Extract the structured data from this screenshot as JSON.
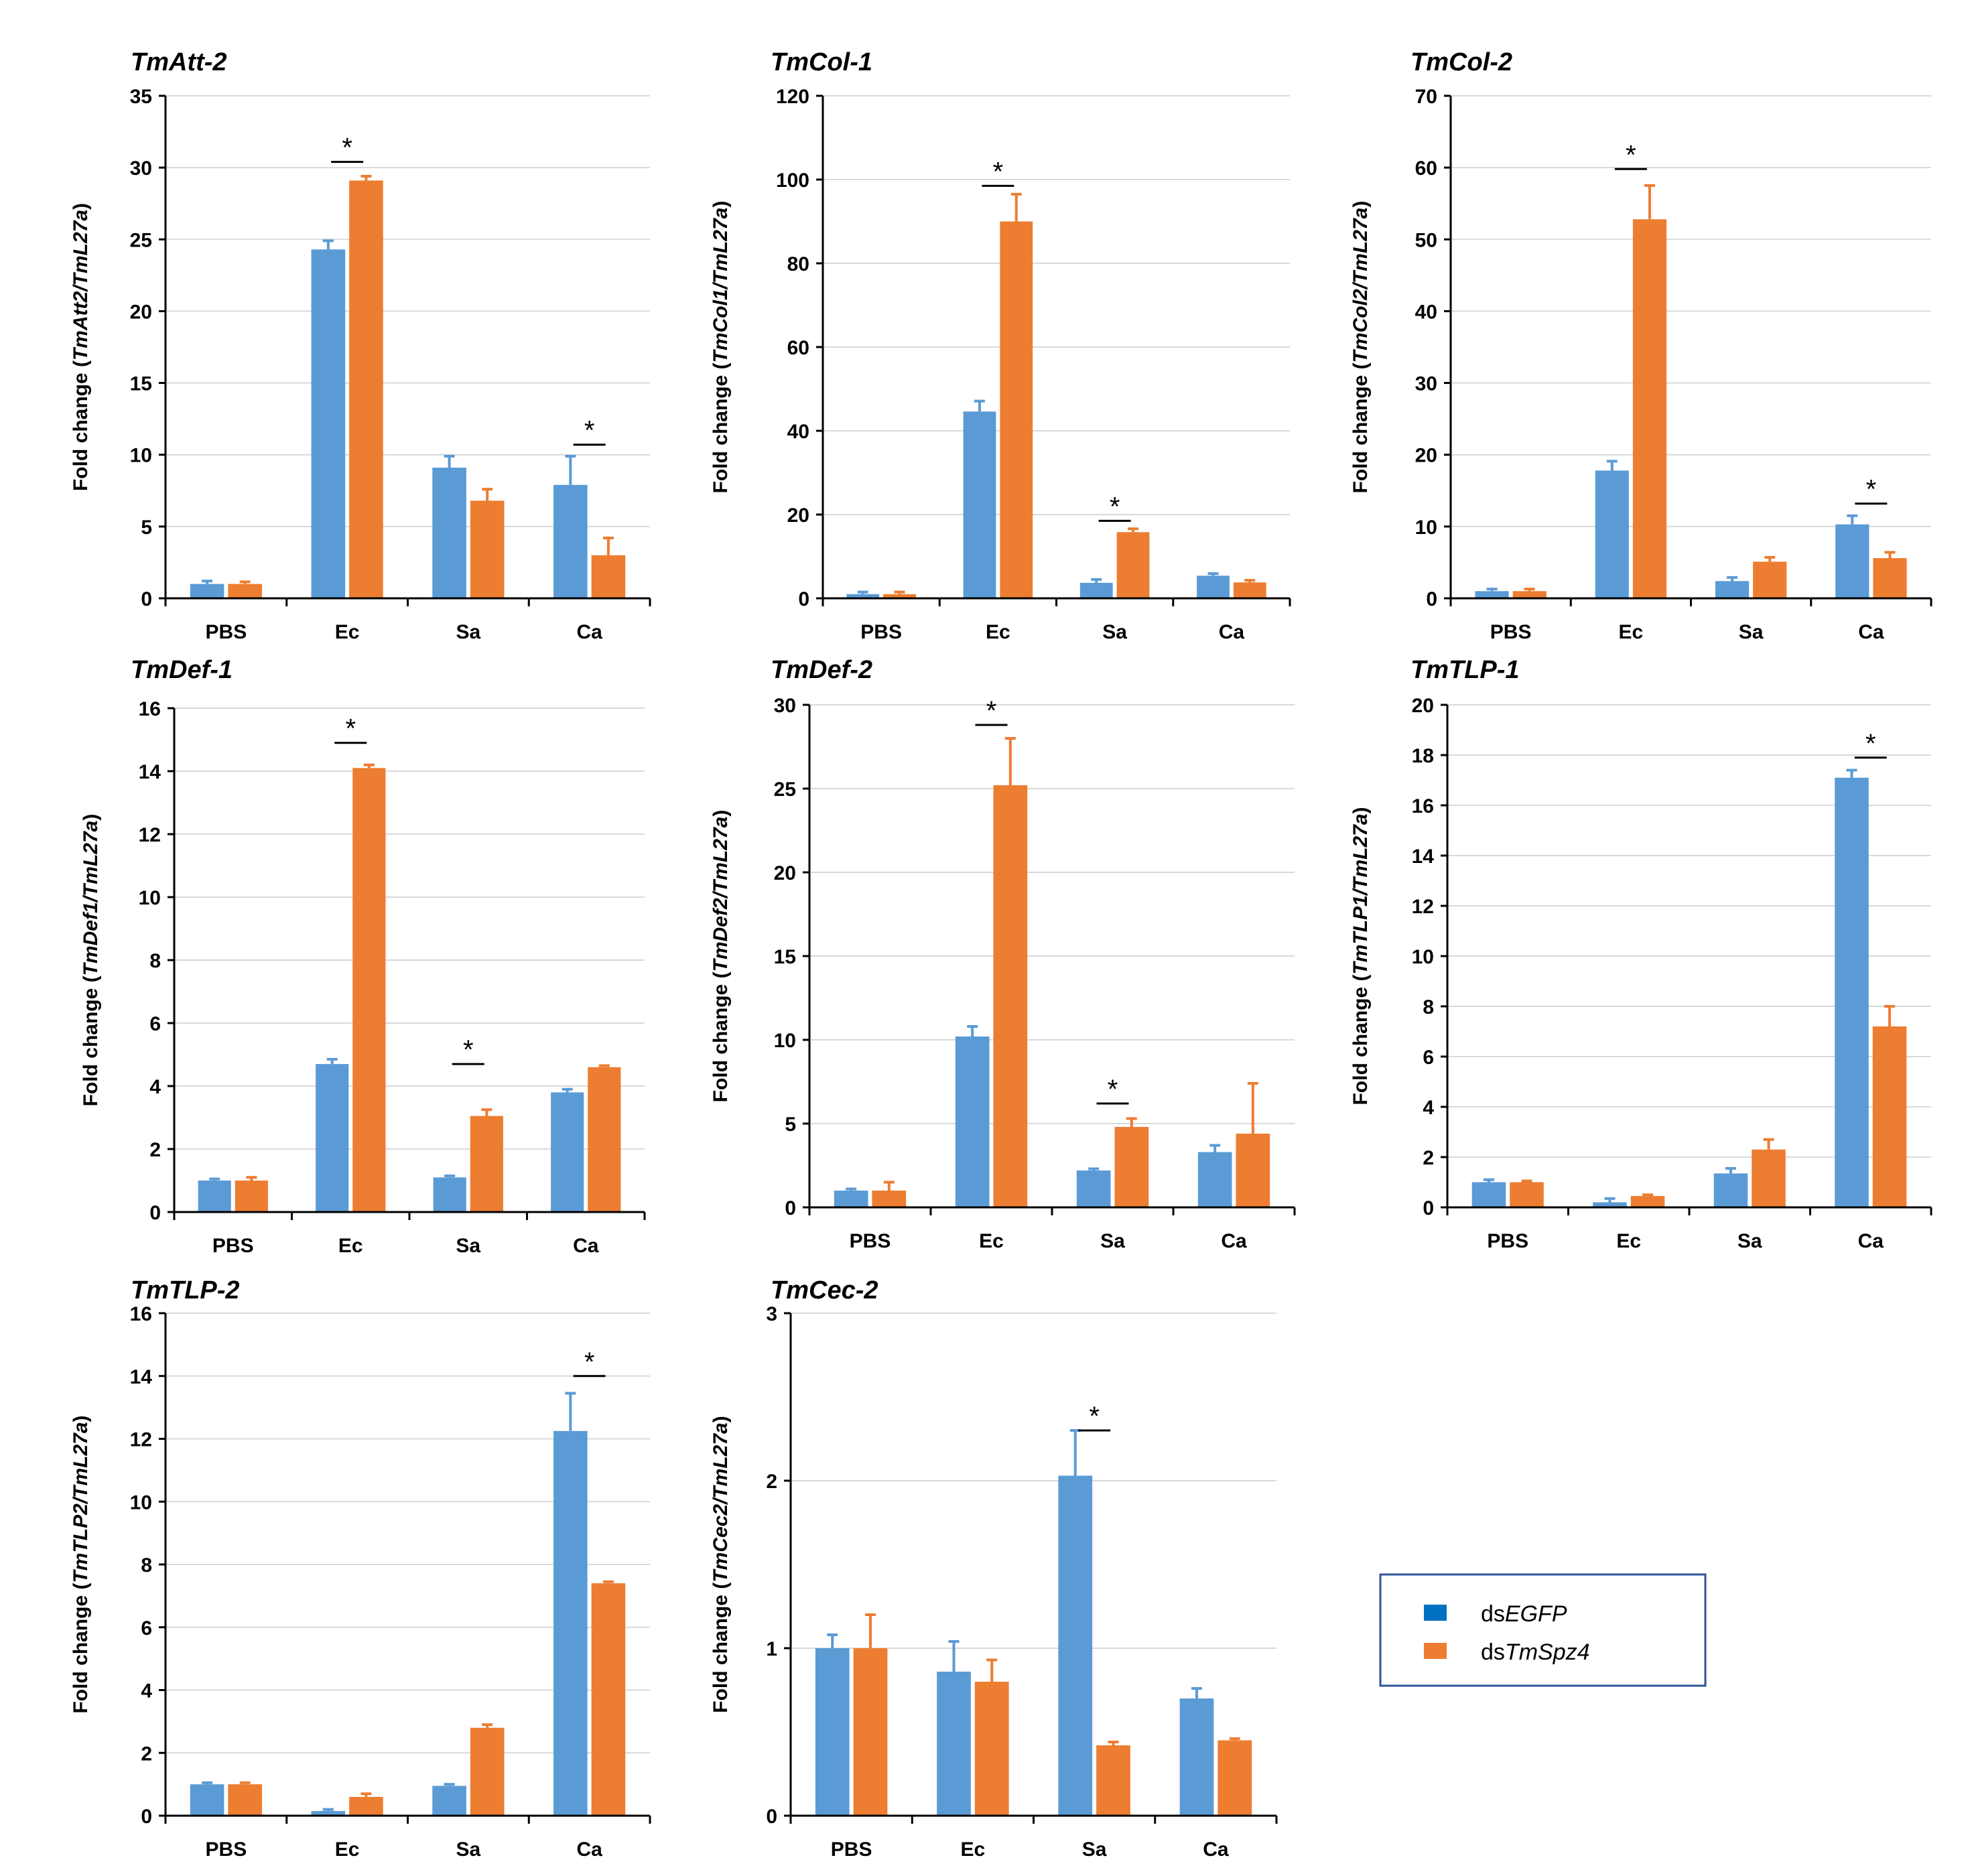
{
  "colors": {
    "dsEGFP": "#5B9BD5",
    "dsTmSpz4": "#ED7D31",
    "legend_marker_dsEGFP": "#0070C0",
    "axis": "#000000",
    "grid": "#D9D9D9",
    "legend_border": "#2F5597"
  },
  "legend": {
    "entries": [
      {
        "prefix": "ds",
        "italic": "EGFP",
        "key": "dsEGFP"
      },
      {
        "prefix": "ds",
        "italic": "TmSpz4",
        "key": "dsTmSpz4"
      }
    ]
  },
  "chart_data": [
    {
      "type": "bar",
      "title": "TmAtt-2",
      "ylabel_prefix": "Fold change (",
      "ylabel_italic": "TmAtt2/TmL27a",
      "ylabel_suffix": ")",
      "categories": [
        "PBS",
        "Ec",
        "Sa",
        "Ca"
      ],
      "ylim": [
        0,
        35
      ],
      "yticks": [
        0,
        5,
        10,
        15,
        20,
        25,
        30,
        35
      ],
      "grid": true,
      "series": [
        {
          "name": "dsEGFP",
          "values": [
            1.0,
            24.3,
            9.1,
            7.9
          ],
          "errors": [
            0.2,
            0.6,
            0.8,
            2.0
          ]
        },
        {
          "name": "dsTmSpz4",
          "values": [
            1.0,
            29.1,
            6.8,
            3.0
          ],
          "errors": [
            0.15,
            0.3,
            0.8,
            1.2
          ]
        }
      ],
      "significance": [
        {
          "category": "Ec",
          "label": "*",
          "y": 30.4
        },
        {
          "category": "Ca",
          "label": "*",
          "y": 10.7
        }
      ]
    },
    {
      "type": "bar",
      "title": "TmCol-1",
      "ylabel_prefix": "Fold change (",
      "ylabel_italic": "TmCol1/TmL27a",
      "ylabel_suffix": ")",
      "categories": [
        "PBS",
        "Ec",
        "Sa",
        "Ca"
      ],
      "ylim": [
        0,
        120
      ],
      "yticks": [
        0,
        20,
        40,
        60,
        80,
        100,
        120
      ],
      "grid": true,
      "series": [
        {
          "name": "dsEGFP",
          "values": [
            1.0,
            44.6,
            3.7,
            5.4
          ],
          "errors": [
            0.5,
            2.5,
            0.8,
            0.5
          ]
        },
        {
          "name": "dsTmSpz4",
          "values": [
            1.0,
            90.0,
            15.8,
            3.8
          ],
          "errors": [
            0.5,
            6.5,
            0.8,
            0.5
          ]
        }
      ],
      "significance": [
        {
          "category": "Ec",
          "label": "*",
          "y": 98.5
        },
        {
          "category": "Sa",
          "label": "*",
          "y": 18.5
        }
      ]
    },
    {
      "type": "bar",
      "title": "TmCol-2",
      "ylabel_prefix": "Fold change (",
      "ylabel_italic": "TmCol2/TmL27a",
      "ylabel_suffix": ")",
      "categories": [
        "PBS",
        "Ec",
        "Sa",
        "Ca"
      ],
      "ylim": [
        0,
        70
      ],
      "yticks": [
        0,
        10,
        20,
        30,
        40,
        50,
        60,
        70
      ],
      "grid": true,
      "series": [
        {
          "name": "dsEGFP",
          "values": [
            1.0,
            17.8,
            2.4,
            10.3
          ],
          "errors": [
            0.3,
            1.3,
            0.5,
            1.2
          ]
        },
        {
          "name": "dsTmSpz4",
          "values": [
            1.0,
            52.8,
            5.1,
            5.6
          ],
          "errors": [
            0.3,
            4.7,
            0.6,
            0.8
          ]
        }
      ],
      "significance": [
        {
          "category": "Ec",
          "label": "*",
          "y": 59.8
        },
        {
          "category": "Ca",
          "label": "*",
          "y": 13.2
        }
      ]
    },
    {
      "type": "bar",
      "title": "TmDef-1",
      "ylabel_prefix": "Fold change (",
      "ylabel_italic": "TmDef1/TmL27a",
      "ylabel_suffix": ")",
      "categories": [
        "PBS",
        "Ec",
        "Sa",
        "Ca"
      ],
      "ylim": [
        0,
        16
      ],
      "yticks": [
        0,
        2,
        4,
        6,
        8,
        10,
        12,
        14,
        16
      ],
      "grid": true,
      "series": [
        {
          "name": "dsEGFP",
          "values": [
            1.0,
            4.7,
            1.1,
            3.8
          ],
          "errors": [
            0.05,
            0.15,
            0.05,
            0.1
          ]
        },
        {
          "name": "dsTmSpz4",
          "values": [
            1.0,
            14.1,
            3.05,
            4.6
          ],
          "errors": [
            0.1,
            0.1,
            0.2,
            0.05
          ]
        }
      ],
      "significance": [
        {
          "category": "Ec",
          "label": "*",
          "y": 14.9
        },
        {
          "category": "Sa",
          "label": "*",
          "y": 4.7
        }
      ]
    },
    {
      "type": "bar",
      "title": "TmDef-2",
      "ylabel_prefix": "Fold change (",
      "ylabel_italic": "TmDef2/TmL27a",
      "ylabel_suffix": ")",
      "categories": [
        "PBS",
        "Ec",
        "Sa",
        "Ca"
      ],
      "ylim": [
        0,
        30
      ],
      "yticks": [
        0,
        5,
        10,
        15,
        20,
        25,
        30
      ],
      "grid": true,
      "series": [
        {
          "name": "dsEGFP",
          "values": [
            1.0,
            10.2,
            2.2,
            3.3
          ],
          "errors": [
            0.1,
            0.6,
            0.1,
            0.4
          ]
        },
        {
          "name": "dsTmSpz4",
          "values": [
            1.0,
            25.2,
            4.8,
            4.4
          ],
          "errors": [
            0.5,
            2.8,
            0.5,
            3.0
          ]
        }
      ],
      "significance": [
        {
          "category": "Ec",
          "label": "*",
          "y": 28.8
        },
        {
          "category": "Sa",
          "label": "*",
          "y": 6.2
        }
      ]
    },
    {
      "type": "bar",
      "title": "TmTLP-1",
      "ylabel_prefix": "Fold change (",
      "ylabel_italic": "TmTLP1/TmL27a",
      "ylabel_suffix": ")",
      "categories": [
        "PBS",
        "Ec",
        "Sa",
        "Ca"
      ],
      "ylim": [
        0,
        20
      ],
      "yticks": [
        0,
        2,
        4,
        6,
        8,
        10,
        12,
        14,
        16,
        18,
        20
      ],
      "grid": true,
      "series": [
        {
          "name": "dsEGFP",
          "values": [
            1.0,
            0.2,
            1.35,
            17.1
          ],
          "errors": [
            0.1,
            0.15,
            0.2,
            0.3
          ]
        },
        {
          "name": "dsTmSpz4",
          "values": [
            1.0,
            0.45,
            2.3,
            7.2
          ],
          "errors": [
            0.05,
            0.05,
            0.4,
            0.8
          ]
        }
      ],
      "significance": [
        {
          "category": "Ca",
          "label": "*",
          "y": 17.9
        }
      ]
    },
    {
      "type": "bar",
      "title": "TmTLP-2",
      "ylabel_prefix": "Fold change (",
      "ylabel_italic": "TmTLP2/TmL27a",
      "ylabel_suffix": ")",
      "categories": [
        "PBS",
        "Ec",
        "Sa",
        "Ca"
      ],
      "ylim": [
        0,
        16
      ],
      "yticks": [
        0,
        2,
        4,
        6,
        8,
        10,
        12,
        14,
        16
      ],
      "grid": true,
      "series": [
        {
          "name": "dsEGFP",
          "values": [
            1.0,
            0.15,
            0.95,
            12.25
          ],
          "errors": [
            0.05,
            0.05,
            0.05,
            1.2
          ]
        },
        {
          "name": "dsTmSpz4",
          "values": [
            1.0,
            0.6,
            2.8,
            7.4
          ],
          "errors": [
            0.05,
            0.1,
            0.1,
            0.05
          ]
        }
      ],
      "significance": [
        {
          "category": "Ca",
          "label": "*",
          "y": 14.0
        }
      ]
    },
    {
      "type": "bar",
      "title": "TmCec-2",
      "ylabel_prefix": "Fold change (",
      "ylabel_italic": "TmCec2/TmL27a",
      "ylabel_suffix": ")",
      "categories": [
        "PBS",
        "Ec",
        "Sa",
        "Ca"
      ],
      "ylim": [
        0,
        3
      ],
      "yticks": [
        0,
        1,
        2,
        3
      ],
      "grid": true,
      "series": [
        {
          "name": "dsEGFP",
          "values": [
            1.0,
            0.86,
            2.03,
            0.7
          ],
          "errors": [
            0.08,
            0.18,
            0.27,
            0.06
          ]
        },
        {
          "name": "dsTmSpz4",
          "values": [
            1.0,
            0.8,
            0.42,
            0.45
          ],
          "errors": [
            0.2,
            0.13,
            0.02,
            0.01
          ]
        }
      ],
      "significance": [
        {
          "category": "Sa",
          "label": "*",
          "y": 2.3
        }
      ]
    }
  ]
}
